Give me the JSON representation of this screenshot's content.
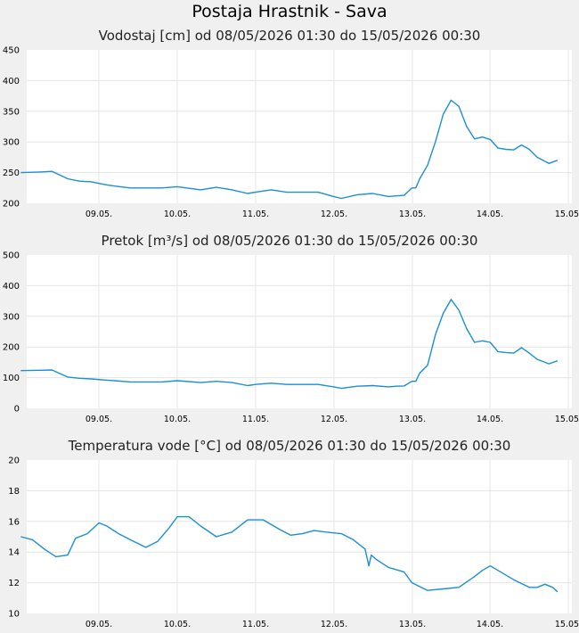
{
  "title": "Postaja Hrastnik - Sava",
  "line_color": "#1a8fd6",
  "chart_data": [
    {
      "type": "line",
      "title": "Vodostaj [cm] od 08/05/2026 01:30 do 15/05/2026 00:30",
      "x_ticks": [
        "09.05.",
        "10.05.",
        "11.05.",
        "12.05.",
        "13.05.",
        "14.05.",
        "15.05."
      ],
      "ylim": [
        200,
        450
      ],
      "y_ticks": [
        200,
        250,
        300,
        350,
        400,
        450
      ],
      "grid": true,
      "x": [
        0,
        0.25,
        0.4,
        0.6,
        0.75,
        0.9,
        1.1,
        1.2,
        1.4,
        1.6,
        1.8,
        2.0,
        2.3,
        2.5,
        2.7,
        2.9,
        3.0,
        3.2,
        3.4,
        3.6,
        3.8,
        4.0,
        4.1,
        4.3,
        4.5,
        4.7,
        4.8,
        4.9,
        5.0,
        5.05,
        5.1,
        5.2,
        5.3,
        5.4,
        5.5,
        5.6,
        5.7,
        5.8,
        5.9,
        6.0,
        6.1,
        6.2,
        6.3,
        6.4,
        6.5,
        6.6,
        6.75,
        6.86
      ],
      "y": [
        250,
        251,
        252,
        240,
        236,
        235,
        230,
        228,
        225,
        225,
        225,
        227,
        222,
        226,
        222,
        216,
        218,
        222,
        218,
        218,
        218,
        211,
        208,
        214,
        216,
        211,
        212,
        213,
        225,
        225,
        240,
        262,
        300,
        345,
        368,
        358,
        325,
        305,
        308,
        304,
        290,
        288,
        287,
        295,
        288,
        275,
        265,
        270
      ]
    },
    {
      "type": "line",
      "title": "Pretok [m³/s] od 08/05/2026 01:30 do 15/05/2026 00:30",
      "x_ticks": [
        "09.05.",
        "10.05.",
        "11.05.",
        "12.05.",
        "13.05.",
        "14.05.",
        "15.05."
      ],
      "ylim": [
        0,
        500
      ],
      "y_ticks": [
        0,
        100,
        200,
        300,
        400,
        500
      ],
      "grid": true,
      "x": [
        0,
        0.25,
        0.4,
        0.6,
        0.75,
        0.9,
        1.1,
        1.2,
        1.4,
        1.6,
        1.8,
        2.0,
        2.3,
        2.5,
        2.7,
        2.9,
        3.0,
        3.2,
        3.4,
        3.6,
        3.8,
        4.0,
        4.1,
        4.3,
        4.5,
        4.7,
        4.8,
        4.9,
        5.0,
        5.05,
        5.1,
        5.2,
        5.3,
        5.4,
        5.5,
        5.6,
        5.7,
        5.8,
        5.9,
        6.0,
        6.1,
        6.2,
        6.3,
        6.4,
        6.5,
        6.6,
        6.75,
        6.86
      ],
      "y": [
        123,
        124,
        125,
        102,
        98,
        96,
        92,
        90,
        86,
        86,
        86,
        90,
        84,
        88,
        84,
        74,
        78,
        82,
        78,
        78,
        78,
        70,
        65,
        72,
        74,
        70,
        72,
        73,
        88,
        88,
        115,
        140,
        240,
        310,
        355,
        320,
        260,
        215,
        220,
        215,
        185,
        182,
        180,
        198,
        180,
        160,
        145,
        155
      ]
    },
    {
      "type": "line",
      "title": "Temperatura vode [°C] od 08/05/2026 01:30 do 15/05/2026 00:30",
      "x_ticks": [
        "09.05.",
        "10.05.",
        "11.05.",
        "12.05.",
        "13.05.",
        "14.05.",
        "15.05."
      ],
      "ylim": [
        10,
        20
      ],
      "y_ticks": [
        10,
        12,
        14,
        16,
        18,
        20
      ],
      "grid": true,
      "x": [
        0,
        0.15,
        0.3,
        0.45,
        0.6,
        0.7,
        0.85,
        1.0,
        1.1,
        1.25,
        1.4,
        1.6,
        1.75,
        1.9,
        2.0,
        2.15,
        2.3,
        2.5,
        2.7,
        2.9,
        3.1,
        3.3,
        3.45,
        3.6,
        3.75,
        3.9,
        4.1,
        4.25,
        4.4,
        4.45,
        4.48,
        4.55,
        4.7,
        4.9,
        5.0,
        5.2,
        5.4,
        5.6,
        5.8,
        5.9,
        6.0,
        6.1,
        6.3,
        6.5,
        6.6,
        6.7,
        6.8,
        6.86
      ],
      "y": [
        15.0,
        14.8,
        14.2,
        13.7,
        13.8,
        14.9,
        15.2,
        15.9,
        15.7,
        15.2,
        14.8,
        14.3,
        14.7,
        15.6,
        16.3,
        16.3,
        15.7,
        15.0,
        15.3,
        16.1,
        16.1,
        15.5,
        15.1,
        15.2,
        15.4,
        15.3,
        15.2,
        14.8,
        14.2,
        13.1,
        13.8,
        13.5,
        13.0,
        12.7,
        12.0,
        11.5,
        11.6,
        11.7,
        12.4,
        12.8,
        13.1,
        12.8,
        12.2,
        11.7,
        11.7,
        11.9,
        11.7,
        11.4
      ]
    }
  ]
}
